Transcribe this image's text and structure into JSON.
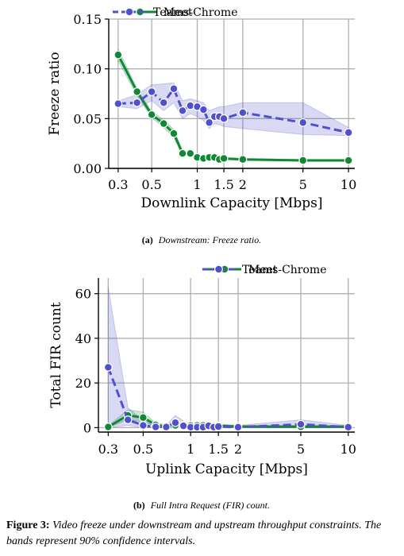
{
  "chart_data": [
    {
      "type": "line",
      "caption_label": "(a)",
      "caption_text": "Downstream: Freeze ratio.",
      "xlabel": "Downlink Capacity [Mbps]",
      "ylabel": "Freeze ratio",
      "xscale": "log",
      "xlim": [
        0.26,
        11
      ],
      "ylim": [
        0,
        0.15
      ],
      "xticks": [
        0.3,
        0.5,
        1,
        1.5,
        2,
        5,
        10
      ],
      "xticklabels": [
        "0.3",
        "0.5",
        "1",
        "1.5",
        "2",
        "5",
        "10"
      ],
      "yticks": [
        0,
        0.05,
        0.1,
        0.15
      ],
      "yticklabels": [
        "0.00",
        "0.05",
        "0.10",
        "0.15"
      ],
      "grid": true,
      "legend": "top",
      "series": [
        {
          "name": "Meet",
          "color": "#118833",
          "linestyle": "solid",
          "x": [
            0.3,
            0.4,
            0.5,
            0.6,
            0.7,
            0.8,
            0.9,
            1.0,
            1.1,
            1.2,
            1.3,
            1.4,
            1.5,
            2,
            5,
            10
          ],
          "y": [
            0.114,
            0.077,
            0.054,
            0.045,
            0.035,
            0.015,
            0.015,
            0.011,
            0.01,
            0.011,
            0.011,
            0.009,
            0.01,
            0.009,
            0.008,
            0.008
          ],
          "ci_low": [
            0.108,
            0.073,
            0.051,
            0.041,
            0.031,
            0.013,
            0.013,
            0.01,
            0.009,
            0.01,
            0.01,
            0.008,
            0.009,
            0.008,
            0.008,
            0.007
          ],
          "ci_high": [
            0.12,
            0.08,
            0.057,
            0.049,
            0.039,
            0.018,
            0.017,
            0.012,
            0.011,
            0.012,
            0.012,
            0.01,
            0.011,
            0.01,
            0.009,
            0.009
          ]
        },
        {
          "name": "Teams-Chrome",
          "color": "#5050cc",
          "linestyle": "dashed",
          "x": [
            0.3,
            0.4,
            0.5,
            0.6,
            0.7,
            0.8,
            0.9,
            1.0,
            1.1,
            1.2,
            1.3,
            1.4,
            1.5,
            2,
            5,
            10
          ],
          "y": [
            0.065,
            0.066,
            0.077,
            0.066,
            0.08,
            0.058,
            0.063,
            0.062,
            0.059,
            0.046,
            0.052,
            0.052,
            0.05,
            0.056,
            0.046,
            0.036
          ],
          "ci_low": [
            0.062,
            0.06,
            0.068,
            0.058,
            0.066,
            0.05,
            0.055,
            0.052,
            0.048,
            0.04,
            0.045,
            0.044,
            0.042,
            0.04,
            0.034,
            0.033
          ],
          "ci_high": [
            0.068,
            0.074,
            0.084,
            0.085,
            0.086,
            0.068,
            0.07,
            0.068,
            0.066,
            0.058,
            0.06,
            0.062,
            0.062,
            0.066,
            0.066,
            0.041
          ]
        }
      ]
    },
    {
      "type": "line",
      "caption_label": "(b)",
      "caption_text": "Full Intra Request (FIR) count.",
      "xlabel": "Uplink Capacity [Mbps]",
      "ylabel": "Total FIR count",
      "xscale": "log",
      "xlim": [
        0.26,
        11
      ],
      "ylim": [
        -2,
        67
      ],
      "xticks": [
        0.3,
        0.5,
        1,
        1.5,
        2,
        5,
        10
      ],
      "xticklabels": [
        "0.3",
        "0.5",
        "1",
        "1.5",
        "2",
        "5",
        "10"
      ],
      "yticks": [
        0,
        20,
        40,
        60
      ],
      "yticklabels": [
        "0",
        "20",
        "40",
        "60"
      ],
      "grid": true,
      "legend": "top",
      "series": [
        {
          "name": "Meet",
          "color": "#118833",
          "linestyle": "solid",
          "x": [
            0.3,
            0.4,
            0.5,
            0.6,
            0.7,
            0.8,
            0.9,
            1.0,
            1.1,
            1.2,
            1.3,
            1.4,
            1.5,
            2,
            5,
            10
          ],
          "y": [
            0.3,
            5.5,
            4.5,
            1.2,
            0.5,
            1.0,
            1.0,
            1.0,
            1.0,
            1.0,
            1.0,
            0.6,
            0.8,
            0.5,
            0.4,
            0.4
          ],
          "ci_low": [
            0.0,
            3.5,
            2.5,
            0.5,
            0.0,
            0.3,
            0.3,
            0.3,
            0.3,
            0.3,
            0.3,
            0.0,
            0.2,
            0.0,
            0.0,
            0.0
          ],
          "ci_high": [
            0.8,
            8.0,
            7.0,
            2.0,
            1.5,
            2.0,
            2.0,
            2.0,
            2.0,
            2.0,
            2.0,
            1.5,
            1.5,
            1.0,
            1.0,
            1.0
          ]
        },
        {
          "name": "Teams-Chrome",
          "color": "#5050cc",
          "linestyle": "dashed",
          "x": [
            0.3,
            0.4,
            0.5,
            0.6,
            0.7,
            0.8,
            0.9,
            1.0,
            1.1,
            1.2,
            1.3,
            1.4,
            1.5,
            2,
            5,
            10
          ],
          "y": [
            27.0,
            3.5,
            1.0,
            0.3,
            0.3,
            2.2,
            0.8,
            0.2,
            0.2,
            0.2,
            0.8,
            0.2,
            0.5,
            0.2,
            1.5,
            0.2
          ],
          "ci_low": [
            0.0,
            1.0,
            0.0,
            0.0,
            0.0,
            0.0,
            0.0,
            0.0,
            0.0,
            0.0,
            0.0,
            0.0,
            0.0,
            0.0,
            0.0,
            0.0
          ],
          "ci_high": [
            63.0,
            9.0,
            3.0,
            1.0,
            1.0,
            5.5,
            3.0,
            1.0,
            1.0,
            1.0,
            2.0,
            1.0,
            1.5,
            1.0,
            3.5,
            1.0
          ]
        }
      ]
    }
  ],
  "figure_caption": {
    "label": "Figure 3:",
    "text": "Video freeze under downstream and upstream throughput constraints. The bands represent 90% confidence intervals."
  }
}
